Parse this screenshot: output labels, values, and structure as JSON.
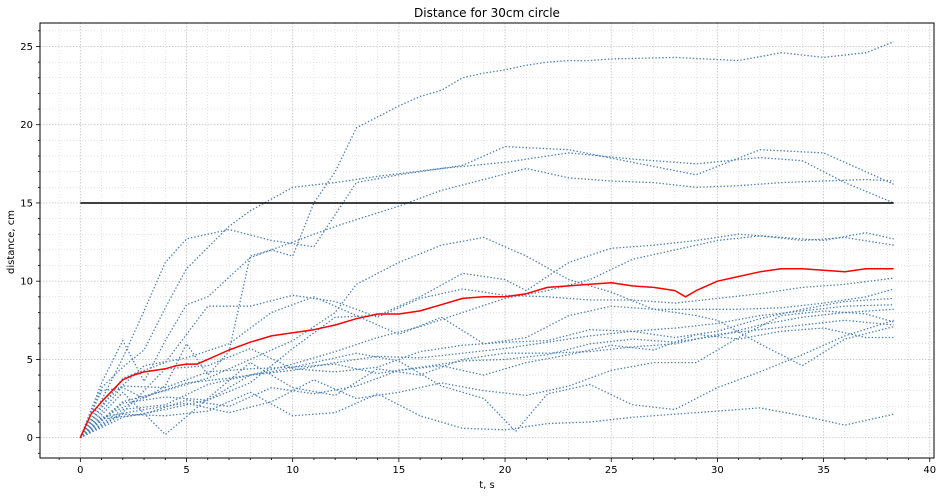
{
  "chart_data": {
    "type": "line",
    "title": "Distance for 30cm circle",
    "xlabel": "t, s",
    "ylabel": "distance, cm",
    "xlim": [
      -1.9,
      40.2
    ],
    "ylim": [
      -1.3,
      26.5
    ],
    "xticks": [
      0,
      5,
      10,
      15,
      20,
      25,
      30,
      35,
      40
    ],
    "yticks": [
      0,
      5,
      10,
      15,
      20,
      25
    ],
    "xminor_step": 1,
    "yminor_step": 1,
    "grid": true,
    "legend": "none",
    "colors": {
      "trajectories": "#4a7fb0",
      "mean": "#ff0000",
      "threshold": "#000000",
      "grid": "#c8c8c8"
    },
    "threshold": {
      "y": 15,
      "x": [
        0,
        38.3
      ]
    },
    "trajectories": [
      {
        "x": [
          0,
          1,
          2,
          3,
          4,
          5,
          7,
          9,
          11,
          13,
          15,
          18,
          20,
          23,
          26,
          29,
          32,
          35,
          38.3
        ],
        "y": [
          0,
          2.4,
          5.1,
          8.1,
          11.2,
          12.7,
          13.3,
          12.6,
          12.2,
          16.3,
          16.8,
          17.4,
          18.6,
          18.4,
          17.6,
          16.8,
          18.4,
          18.2,
          16.2
        ]
      },
      {
        "x": [
          0,
          1,
          2,
          3,
          4,
          5,
          6,
          7,
          8,
          9,
          10,
          11,
          12,
          13,
          14,
          15,
          16,
          17,
          18,
          19,
          20,
          21,
          22,
          23,
          24,
          25,
          28,
          31,
          33,
          35,
          37,
          38.3
        ],
        "y": [
          0,
          3,
          3.2,
          2.5,
          3.3,
          6,
          4,
          5.5,
          11.6,
          12,
          11.6,
          15,
          17,
          19.8,
          20.5,
          21.2,
          21.8,
          22.2,
          23,
          23.3,
          23.5,
          23.8,
          24,
          24.1,
          24.1,
          24.2,
          24.3,
          24.1,
          24.6,
          24.3,
          24.6,
          25.3
        ]
      },
      {
        "x": [
          0,
          1,
          2,
          3,
          4,
          5,
          7,
          8,
          10,
          12,
          14,
          17,
          20,
          23,
          26,
          29,
          32,
          34,
          36,
          38.3
        ],
        "y": [
          0,
          3.2,
          4.5,
          5.6,
          8.3,
          10.8,
          13.5,
          14.5,
          16,
          16.3,
          16.7,
          17.2,
          17.6,
          18.2,
          17.8,
          17.5,
          17.9,
          17.7,
          16.3,
          15
        ]
      },
      {
        "x": [
          0,
          1,
          2,
          3,
          4,
          5,
          6,
          8,
          10,
          12,
          15,
          17,
          19,
          21,
          23,
          25,
          27,
          29,
          31,
          33,
          35,
          37,
          38.3
        ],
        "y": [
          0,
          3.5,
          6.2,
          3.6,
          6.2,
          8.5,
          9,
          11.5,
          12.5,
          13.5,
          14.8,
          15.8,
          16.5,
          17.2,
          16.6,
          16.4,
          16.3,
          16,
          16.1,
          16.3,
          16.4,
          16.5,
          16.4
        ]
      },
      {
        "x": [
          0,
          2,
          4,
          6,
          8,
          10,
          12,
          14,
          16,
          18,
          20,
          22,
          24,
          26,
          28,
          30,
          32,
          34,
          36,
          38.3
        ],
        "y": [
          0,
          1.3,
          1.8,
          2.4,
          4,
          4.7,
          5.5,
          6.4,
          7.1,
          8,
          8.9,
          9.4,
          10.1,
          11.4,
          12,
          12.6,
          12.9,
          12.6,
          12.8,
          12.3
        ]
      },
      {
        "x": [
          0,
          2,
          4,
          6,
          8,
          10,
          12,
          14,
          16,
          18,
          20,
          22,
          24,
          26,
          28,
          30,
          32,
          34,
          36,
          38.3
        ],
        "y": [
          0,
          3.8,
          4.8,
          8.4,
          8.4,
          9.1,
          8.7,
          7.7,
          8.9,
          9.5,
          9.1,
          9,
          8.8,
          8.8,
          8.6,
          8.9,
          9.2,
          9.6,
          9.8,
          10.2
        ]
      },
      {
        "x": [
          0,
          2,
          4,
          6,
          8,
          10,
          12,
          13,
          15,
          17,
          19,
          21,
          23,
          25,
          27,
          29,
          30,
          32,
          34,
          36,
          38.3
        ],
        "y": [
          0,
          2.3,
          3,
          3.8,
          5,
          6.2,
          8,
          9.8,
          11.2,
          12.3,
          12.8,
          11.6,
          10.1,
          9.3,
          8.2,
          7.8,
          7.5,
          6,
          4.6,
          6.3,
          7.1
        ]
      },
      {
        "x": [
          0,
          2,
          4,
          6,
          8,
          10,
          12,
          14,
          16,
          18,
          20,
          21,
          23,
          25,
          27,
          29,
          31,
          33,
          35,
          37,
          38.3
        ],
        "y": [
          0,
          2.2,
          2.6,
          2.4,
          3.5,
          5.7,
          7.7,
          7.8,
          9,
          10.5,
          10.1,
          9.4,
          11.2,
          12.1,
          12.3,
          12.6,
          13,
          12.8,
          12.6,
          13.1,
          12.7
        ]
      },
      {
        "x": [
          0,
          1,
          3,
          5,
          7,
          9,
          11,
          13,
          15,
          17,
          19,
          21,
          23,
          25,
          27,
          29,
          31,
          33,
          35,
          37,
          38.3
        ],
        "y": [
          0,
          1.2,
          1.5,
          2.4,
          2,
          3.2,
          2.8,
          3.3,
          4.3,
          4.6,
          4,
          4.8,
          5.3,
          5.9,
          5.6,
          6.6,
          6.3,
          6.8,
          7,
          6.4,
          6.4
        ]
      },
      {
        "x": [
          0,
          1,
          3,
          5,
          7,
          9,
          11,
          13,
          15,
          17,
          19,
          21,
          23,
          25,
          27,
          29,
          31,
          33,
          35,
          37,
          38.3
        ],
        "y": [
          0,
          1.3,
          1.8,
          2.2,
          1.6,
          2.3,
          3.7,
          2.5,
          2.9,
          3.5,
          3,
          2.7,
          3.3,
          4.3,
          4.8,
          4.8,
          6.4,
          7.8,
          8.1,
          7.9,
          7.4
        ]
      },
      {
        "x": [
          0,
          1,
          3,
          5,
          7,
          9,
          11,
          13,
          15,
          17,
          19,
          21,
          23,
          25,
          27,
          29,
          31,
          33,
          35,
          37,
          38.3
        ],
        "y": [
          0,
          2.1,
          4.6,
          5.1,
          6,
          8,
          9,
          7.8,
          6.6,
          7.7,
          6,
          6.4,
          7.8,
          8.4,
          8.2,
          8.2,
          8.2,
          8.3,
          8.6,
          9,
          9.5
        ]
      },
      {
        "x": [
          0,
          2,
          4,
          6,
          8,
          10,
          12,
          14,
          16,
          18,
          20,
          22,
          24,
          26,
          28,
          30,
          32,
          34,
          36,
          38.3
        ],
        "y": [
          0,
          1.5,
          1.4,
          1.7,
          2.9,
          1.4,
          1.6,
          2.8,
          1.4,
          0.6,
          0.5,
          0.9,
          1,
          1.3,
          1.5,
          1.7,
          1.9,
          1.4,
          0.8,
          1.5
        ]
      },
      {
        "x": [
          0,
          1.5,
          3,
          5,
          7,
          9,
          11,
          13,
          15,
          17,
          19,
          20.5,
          22,
          24,
          26,
          28,
          30,
          32,
          34,
          36,
          38.3
        ],
        "y": [
          0,
          1.6,
          2.6,
          3.5,
          3.8,
          4.2,
          4.8,
          5.4,
          4.9,
          3.3,
          2.5,
          0.4,
          2.8,
          3.4,
          2.1,
          1.8,
          3.2,
          4.2,
          5.3,
          6.5,
          7.5
        ]
      },
      {
        "x": [
          0,
          2,
          4,
          6,
          8,
          10,
          12,
          14,
          16,
          18,
          20,
          22,
          24,
          26,
          28,
          30,
          32,
          34,
          36,
          38.3
        ],
        "y": [
          0,
          1.6,
          4.4,
          4.6,
          5.7,
          4.4,
          4.2,
          4.5,
          5.5,
          5.9,
          6.1,
          6.2,
          6.9,
          6.8,
          6.4,
          6.8,
          7.6,
          8.2,
          8.7,
          8.9
        ]
      },
      {
        "x": [
          0,
          2,
          4,
          6,
          8,
          10,
          12,
          14,
          16,
          18,
          20,
          22,
          24,
          26,
          28,
          30,
          32,
          34,
          36,
          38.3
        ],
        "y": [
          0,
          2.9,
          0.2,
          2.5,
          4.8,
          3.2,
          2.7,
          4.4,
          4,
          5,
          5.4,
          5.4,
          5.5,
          5.8,
          6,
          6.6,
          6.9,
          7.2,
          7.5,
          7.2
        ]
      },
      {
        "x": [
          0,
          2,
          4,
          6,
          8,
          10,
          12,
          14,
          16,
          18,
          20,
          22,
          24,
          26,
          28,
          30,
          32,
          34,
          36,
          38.3
        ],
        "y": [
          0,
          3.3,
          3.2,
          4.2,
          4.4,
          4.5,
          4.7,
          4.1,
          4.5,
          4.9,
          5,
          5.3,
          6,
          6.3,
          6.1,
          6.5,
          7.2,
          7.7,
          8,
          8.2
        ]
      },
      {
        "x": [
          0,
          2,
          4,
          6,
          8,
          10,
          12,
          14,
          16,
          18,
          20,
          22,
          24,
          26,
          28,
          30,
          32,
          34,
          36,
          38.3
        ],
        "y": [
          0,
          1.8,
          2.1,
          3.4,
          4,
          4.3,
          4.8,
          5.2,
          5.1,
          5.4,
          5.7,
          6.1,
          6.5,
          6.8,
          7,
          7.3,
          7.8,
          8.1,
          8.4,
          8.5
        ]
      }
    ],
    "mean": {
      "x": [
        0,
        0.5,
        1,
        1.5,
        2,
        2.5,
        3,
        3.5,
        4,
        4.5,
        5,
        5.5,
        6,
        7,
        8,
        9,
        10,
        11,
        12,
        13,
        14,
        15,
        16,
        17,
        18,
        19,
        20,
        21,
        22,
        23,
        24,
        25,
        26,
        27,
        28,
        28.5,
        29,
        30,
        31,
        32,
        33,
        34,
        35,
        36,
        37,
        38,
        38.3
      ],
      "y": [
        0,
        1.5,
        2.3,
        3,
        3.7,
        4,
        4.2,
        4.3,
        4.4,
        4.6,
        4.7,
        4.7,
        5,
        5.6,
        6.1,
        6.5,
        6.7,
        6.9,
        7.2,
        7.6,
        7.9,
        7.9,
        8.1,
        8.5,
        8.9,
        9,
        9,
        9.2,
        9.6,
        9.7,
        9.8,
        9.9,
        9.7,
        9.6,
        9.4,
        9,
        9.4,
        10,
        10.3,
        10.6,
        10.8,
        10.8,
        10.7,
        10.6,
        10.8,
        10.8,
        10.8
      ]
    }
  }
}
